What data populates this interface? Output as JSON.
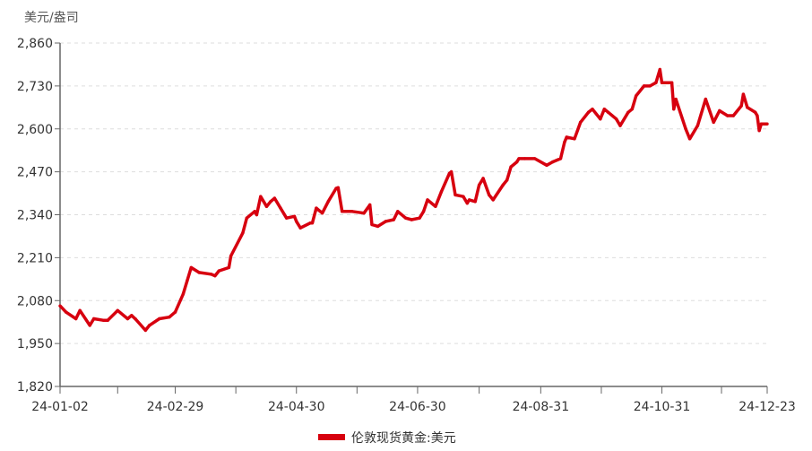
{
  "chart_data": {
    "type": "line",
    "title": "",
    "ylabel": "美元/盎司",
    "xlabel": "",
    "ylim": [
      1820,
      2860
    ],
    "yticks": [
      1820,
      1950,
      2080,
      2210,
      2340,
      2470,
      2600,
      2730,
      2860
    ],
    "ytick_labels": [
      "1,820",
      "1,950",
      "2,080",
      "2,210",
      "2,340",
      "2,470",
      "2,600",
      "2,730",
      "2,860"
    ],
    "xlim": [
      "2024-01-02",
      "2024-12-23"
    ],
    "xtick_labels": [
      "24-01-02",
      "24-02-29",
      "24-04-30",
      "24-06-30",
      "24-08-31",
      "24-10-31",
      "24-12-23"
    ],
    "xtick_dates": [
      "2024-01-02",
      "2024-02-29",
      "2024-04-30",
      "2024-06-30",
      "2024-08-31",
      "2024-10-31",
      "2024-12-23"
    ],
    "grid": "horizontal-dashed",
    "legend_position": "bottom",
    "colors": {
      "series": "#d7000f",
      "axis": "#666666",
      "grid": "#dddddd"
    },
    "series": [
      {
        "name": "伦敦现货黄金:美元",
        "x": [
          "2024-01-02",
          "2024-01-05",
          "2024-01-10",
          "2024-01-12",
          "2024-01-17",
          "2024-01-19",
          "2024-01-24",
          "2024-01-26",
          "2024-01-31",
          "2024-02-05",
          "2024-02-07",
          "2024-02-09",
          "2024-02-14",
          "2024-02-16",
          "2024-02-21",
          "2024-02-26",
          "2024-02-29",
          "2024-03-04",
          "2024-03-06",
          "2024-03-08",
          "2024-03-12",
          "2024-03-18",
          "2024-03-20",
          "2024-03-22",
          "2024-03-27",
          "2024-03-28",
          "2024-04-03",
          "2024-04-05",
          "2024-04-09",
          "2024-04-10",
          "2024-04-12",
          "2024-04-15",
          "2024-04-17",
          "2024-04-19",
          "2024-04-22",
          "2024-04-25",
          "2024-04-29",
          "2024-04-30",
          "2024-05-02",
          "2024-05-07",
          "2024-05-08",
          "2024-05-10",
          "2024-05-13",
          "2024-05-16",
          "2024-05-20",
          "2024-05-21",
          "2024-05-23",
          "2024-05-28",
          "2024-06-03",
          "2024-06-06",
          "2024-06-07",
          "2024-06-10",
          "2024-06-14",
          "2024-06-18",
          "2024-06-20",
          "2024-06-24",
          "2024-06-27",
          "2024-07-01",
          "2024-07-03",
          "2024-07-05",
          "2024-07-09",
          "2024-07-12",
          "2024-07-16",
          "2024-07-17",
          "2024-07-19",
          "2024-07-23",
          "2024-07-25",
          "2024-07-26",
          "2024-07-29",
          "2024-07-31",
          "2024-08-02",
          "2024-08-05",
          "2024-08-07",
          "2024-08-12",
          "2024-08-14",
          "2024-08-16",
          "2024-08-19",
          "2024-08-20",
          "2024-08-23",
          "2024-08-28",
          "2024-09-03",
          "2024-09-06",
          "2024-09-10",
          "2024-09-12",
          "2024-09-13",
          "2024-09-17",
          "2024-09-20",
          "2024-09-24",
          "2024-09-26",
          "2024-09-30",
          "2024-10-02",
          "2024-10-04",
          "2024-10-08",
          "2024-10-10",
          "2024-10-14",
          "2024-10-16",
          "2024-10-18",
          "2024-10-22",
          "2024-10-25",
          "2024-10-28",
          "2024-10-30",
          "2024-10-31",
          "2024-11-04",
          "2024-11-05",
          "2024-11-06",
          "2024-11-07",
          "2024-11-12",
          "2024-11-14",
          "2024-11-18",
          "2024-11-22",
          "2024-11-26",
          "2024-11-29",
          "2024-12-03",
          "2024-12-06",
          "2024-12-10",
          "2024-12-11",
          "2024-12-13",
          "2024-12-17",
          "2024-12-18",
          "2024-12-19",
          "2024-12-20",
          "2024-12-23"
        ],
        "values": [
          2064,
          2045,
          2025,
          2050,
          2005,
          2025,
          2020,
          2020,
          2050,
          2025,
          2035,
          2024,
          1990,
          2005,
          2025,
          2030,
          2045,
          2100,
          2140,
          2180,
          2165,
          2160,
          2155,
          2170,
          2180,
          2215,
          2285,
          2330,
          2350,
          2340,
          2395,
          2365,
          2380,
          2390,
          2360,
          2330,
          2335,
          2320,
          2300,
          2315,
          2315,
          2360,
          2345,
          2380,
          2420,
          2422,
          2350,
          2350,
          2345,
          2370,
          2310,
          2305,
          2320,
          2325,
          2350,
          2330,
          2325,
          2330,
          2350,
          2385,
          2365,
          2410,
          2465,
          2470,
          2400,
          2395,
          2375,
          2385,
          2380,
          2430,
          2450,
          2400,
          2385,
          2430,
          2445,
          2485,
          2500,
          2510,
          2510,
          2510,
          2490,
          2500,
          2510,
          2560,
          2575,
          2570,
          2620,
          2650,
          2660,
          2630,
          2660,
          2650,
          2630,
          2610,
          2650,
          2660,
          2700,
          2730,
          2730,
          2740,
          2780,
          2740,
          2740,
          2740,
          2660,
          2690,
          2600,
          2570,
          2610,
          2690,
          2620,
          2655,
          2640,
          2640,
          2670,
          2705,
          2665,
          2650,
          2640,
          2595,
          2615,
          2615
        ]
      }
    ]
  }
}
